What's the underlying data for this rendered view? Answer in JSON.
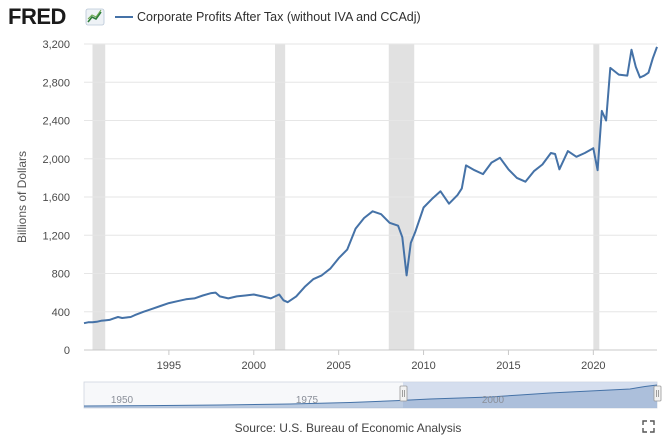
{
  "brand": "FRED",
  "source_label": "Source: U.S. Bureau of Economic Analysis",
  "colors": {
    "series": "#4572a7",
    "recession": "#e1e1e1",
    "grid": "#e6e6e6",
    "navigator_fill": "#c9d6ea"
  },
  "icons": {
    "brand_logo": "line-chart-icon",
    "fullscreen": "fullscreen-icon"
  },
  "chart_data": {
    "type": "line",
    "title": "",
    "xlabel": "",
    "ylabel": "Billions of Dollars",
    "ylim": [
      0,
      3200
    ],
    "xlim": [
      1990.0,
      2023.75
    ],
    "yticks": [
      0,
      400,
      800,
      1200,
      1600,
      2000,
      2400,
      2800,
      3200
    ],
    "ytick_labels": [
      "0",
      "400",
      "800",
      "1,200",
      "1,600",
      "2,000",
      "2,400",
      "2,800",
      "3,200"
    ],
    "xticks": [
      1995,
      2000,
      2005,
      2010,
      2015,
      2020
    ],
    "xtick_labels": [
      "1995",
      "2000",
      "2005",
      "2010",
      "2015",
      "2020"
    ],
    "grid": "horizontal",
    "legend_position": "top-left",
    "recessions": [
      [
        1990.5,
        1991.25
      ],
      [
        2001.25,
        2001.85
      ],
      [
        2007.95,
        2009.45
      ],
      [
        2020.0,
        2020.35
      ]
    ],
    "navigator": {
      "ticks": [
        "1950",
        "1975",
        "2000"
      ],
      "window": [
        "1990",
        "2023"
      ]
    },
    "series": [
      {
        "name": "Corporate Profits After Tax (without IVA and CCAdj)",
        "x": [
          1990.0,
          1990.25,
          1990.5,
          1990.75,
          1991.0,
          1991.25,
          1991.5,
          1991.75,
          1992.0,
          1992.25,
          1992.5,
          1992.75,
          1993.0,
          1993.5,
          1994.0,
          1994.5,
          1995.0,
          1995.5,
          1996.0,
          1996.5,
          1997.0,
          1997.5,
          1997.75,
          1998.0,
          1998.5,
          1999.0,
          1999.5,
          2000.0,
          2000.5,
          2001.0,
          2001.5,
          2001.75,
          2002.0,
          2002.5,
          2003.0,
          2003.5,
          2004.0,
          2004.5,
          2005.0,
          2005.5,
          2006.0,
          2006.5,
          2007.0,
          2007.5,
          2008.0,
          2008.5,
          2008.75,
          2009.0,
          2009.25,
          2009.5,
          2010.0,
          2010.5,
          2011.0,
          2011.5,
          2012.0,
          2012.25,
          2012.5,
          2013.0,
          2013.5,
          2014.0,
          2014.5,
          2015.0,
          2015.5,
          2016.0,
          2016.5,
          2017.0,
          2017.5,
          2017.75,
          2018.0,
          2018.5,
          2019.0,
          2019.5,
          2020.0,
          2020.25,
          2020.5,
          2020.75,
          2021.0,
          2021.5,
          2022.0,
          2022.25,
          2022.5,
          2022.75,
          2023.0,
          2023.25,
          2023.5,
          2023.75
        ],
        "values": [
          280,
          290,
          290,
          295,
          305,
          310,
          315,
          330,
          345,
          335,
          340,
          345,
          365,
          400,
          430,
          460,
          490,
          510,
          530,
          540,
          570,
          595,
          600,
          560,
          540,
          560,
          570,
          580,
          560,
          540,
          580,
          520,
          500,
          560,
          660,
          740,
          780,
          850,
          960,
          1050,
          1270,
          1380,
          1450,
          1420,
          1330,
          1300,
          1180,
          780,
          1120,
          1230,
          1490,
          1580,
          1660,
          1530,
          1620,
          1690,
          1930,
          1880,
          1840,
          1960,
          2010,
          1890,
          1800,
          1760,
          1870,
          1940,
          2060,
          2050,
          1890,
          2080,
          2020,
          2060,
          2110,
          1880,
          2500,
          2400,
          2950,
          2880,
          2870,
          3140,
          2960,
          2850,
          2870,
          2900,
          3050,
          3170
        ]
      }
    ]
  }
}
